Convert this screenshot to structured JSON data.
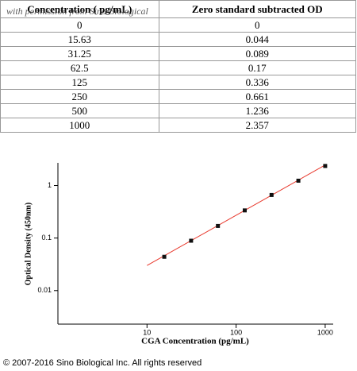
{
  "table": {
    "header": [
      "Concentration ( pg/mL)",
      "Zero standard subtracted OD"
    ],
    "rows": [
      [
        "0",
        "0"
      ],
      [
        "15.63",
        "0.044"
      ],
      [
        "31.25",
        "0.089"
      ],
      [
        "62.5",
        "0.17"
      ],
      [
        "125",
        "0.336"
      ],
      [
        "250",
        "0.661"
      ],
      [
        "500",
        "1.236"
      ],
      [
        "1000",
        "2.357"
      ]
    ],
    "watermark": "with permission from Sino Biological"
  },
  "chart_data": {
    "type": "scatter",
    "x_label": "CGA Concentration (pg/mL)",
    "y_label": "Optical Density (450nm)",
    "x": [
      15.63,
      31.25,
      62.5,
      125,
      250,
      500,
      1000
    ],
    "values": [
      0.044,
      0.089,
      0.17,
      0.336,
      0.661,
      1.236,
      2.357
    ],
    "color": "#111111",
    "fit": {
      "color": "#e8382c",
      "x": [
        10,
        1000
      ],
      "y": [
        0.03,
        2.46
      ]
    },
    "log_x": true,
    "log_y": true,
    "xlim": [
      1,
      1230
    ],
    "ylim": [
      0.0023,
      2.7
    ],
    "xticks": [
      10,
      100,
      1000
    ],
    "yticks": [
      0.01,
      0.1,
      1
    ]
  },
  "footer": "© 2007-2016 Sino Biological Inc. All rights reserved"
}
